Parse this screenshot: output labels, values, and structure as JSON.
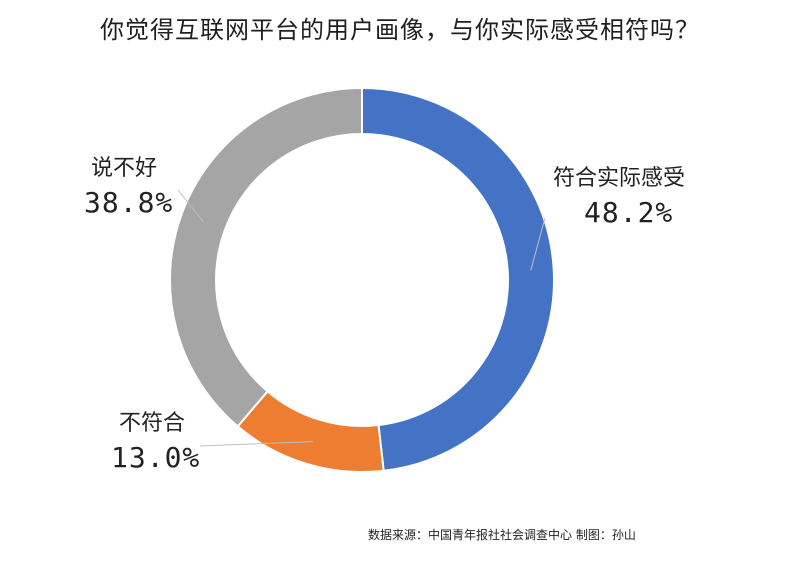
{
  "chart_data": {
    "type": "pie",
    "subtype": "donut",
    "title": "你觉得互联网平台的用户画像，与你实际感受相符吗？",
    "slices": [
      {
        "label": "符合实际感受",
        "value": 48.2,
        "value_text": "48.2%",
        "color": "#4472C4"
      },
      {
        "label": "不符合",
        "value": 13.0,
        "value_text": "13.0%",
        "color": "#ED7D31"
      },
      {
        "label": "说不好",
        "value": 38.8,
        "value_text": "38.8%",
        "color": "#A5A5A5"
      }
    ],
    "legend": "none",
    "source": "数据来源：中国青年报社社会调查中心  制图：孙山"
  }
}
